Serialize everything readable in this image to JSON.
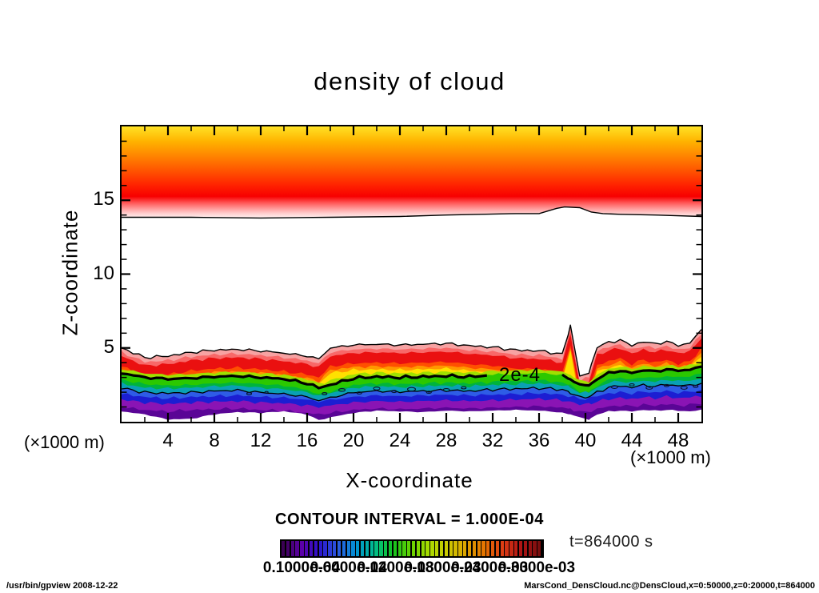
{
  "header": {
    "title": "density of cloud"
  },
  "axes": {
    "x_label": "X-coordinate",
    "y_label": "Z-coordinate",
    "x_unit_left": "(×1000 m)",
    "x_unit_right": "(×1000 m)",
    "x_ticks": [
      4,
      8,
      12,
      16,
      20,
      24,
      28,
      32,
      36,
      40,
      44,
      48
    ],
    "y_ticks": [
      5,
      10,
      15
    ]
  },
  "annotations": {
    "contour_interval": "CONTOUR INTERVAL = 1.000E-04",
    "time_label": "t=864000 s",
    "contour_label": "2e-4"
  },
  "footer": {
    "left": "/usr/bin/gpview  2008-12-22",
    "right": "MarsCond_DensCloud.nc@DensCloud,x=0:50000,z=0:20000,t=864000"
  },
  "colorbar": {
    "labels": [
      "0.1000e-04",
      "0.6000e-04",
      "0.1200e-03",
      "0.1800e-03",
      "0.2400e-03",
      "0.3000e-03"
    ],
    "stops": [
      "#3A0054",
      "#5C00A8",
      "#2A14CC",
      "#2B5BE0",
      "#0093D2",
      "#00BE8C",
      "#14C21E",
      "#66D200",
      "#AADC00",
      "#CCC800",
      "#DCA300",
      "#E67300",
      "#DC3C14",
      "#AE1414",
      "#7A0E0E"
    ],
    "stripes": 56
  },
  "chart_data": {
    "type": "heatmap",
    "subtype": "filled-contour",
    "title": "density of cloud",
    "xlabel": "X-coordinate",
    "ylabel": "Z-coordinate",
    "xlim": [
      0,
      50
    ],
    "ylim": [
      0,
      20
    ],
    "x_unit": "(×1000 m)",
    "y_unit": "(×1000 m)",
    "contour_interval": "1.000E-04",
    "time": "t=864000 s",
    "labeled_contour": {
      "label": "2e-4",
      "x": 32.55,
      "z": 3.2
    },
    "upper_cloud": {
      "description": "upper cloud deck from z=20 down to ~z=14, yellow at top through orange/red to pink-white at bottom contour",
      "boundary": {
        "x": [
          0,
          6,
          12,
          18,
          24,
          28,
          31,
          34,
          36,
          37.5,
          38.2,
          39.5,
          40.5,
          41.5,
          43,
          46,
          50
        ],
        "z": [
          13.85,
          13.85,
          13.8,
          13.85,
          13.9,
          14.0,
          14.05,
          14.1,
          14.1,
          14.45,
          14.55,
          14.5,
          14.2,
          14.1,
          14.05,
          14.0,
          13.9
        ]
      },
      "gradient": [
        [
          0,
          "#FFE226"
        ],
        [
          0.16,
          "#FFB400"
        ],
        [
          0.34,
          "#FF8000"
        ],
        [
          0.52,
          "#FF4A00"
        ],
        [
          0.66,
          "#FF1E00"
        ],
        [
          0.77,
          "#F70000"
        ],
        [
          0.84,
          "#FF5555"
        ],
        [
          0.9,
          "#FF9595"
        ],
        [
          0.955,
          "#FFCCCC"
        ],
        [
          1,
          "#FFECEC"
        ]
      ]
    },
    "lower_cloud": {
      "description": "surface cloud layer ~z=0-5.5 with rainbow stratification; notch near x=39.5-40.3; spike to z~6.5 at x~38.7",
      "x": [
        0,
        2,
        4,
        6,
        8,
        10,
        12,
        14,
        16,
        17,
        18,
        20,
        22,
        24,
        26,
        28,
        30,
        32,
        34,
        36,
        37,
        38,
        38.7,
        39.5,
        40.3,
        41,
        42,
        43,
        44,
        45,
        46,
        47,
        48,
        49,
        50
      ],
      "top": [
        5.0,
        4.35,
        4.45,
        4.7,
        4.85,
        4.9,
        4.8,
        4.65,
        4.45,
        4.25,
        5.0,
        5.2,
        5.25,
        5.2,
        5.25,
        5.3,
        5.15,
        5.05,
        4.85,
        4.8,
        4.7,
        4.55,
        6.5,
        3.1,
        3.3,
        5.1,
        5.35,
        5.55,
        5.15,
        5.45,
        5.25,
        5.45,
        5.15,
        5.35,
        6.2
      ],
      "contour_2e4": [
        3.3,
        3.0,
        2.9,
        2.95,
        3.05,
        3.1,
        3.0,
        2.9,
        2.6,
        2.3,
        2.5,
        2.95,
        3.05,
        3.0,
        3.05,
        3.1,
        3.05,
        3.15,
        3.2,
        3.25,
        3.2,
        3.1,
        2.9,
        2.5,
        2.45,
        2.9,
        3.3,
        3.45,
        3.3,
        3.5,
        3.4,
        3.55,
        3.45,
        3.55,
        3.7
      ],
      "contour_1e4": [
        2.4,
        2.1,
        2.05,
        2.1,
        2.2,
        2.25,
        2.1,
        2.0,
        1.8,
        1.55,
        1.75,
        2.1,
        2.2,
        2.15,
        2.2,
        2.25,
        2.2,
        2.3,
        2.35,
        2.4,
        2.35,
        2.3,
        2.1,
        1.8,
        1.8,
        2.1,
        2.45,
        2.55,
        2.45,
        2.6,
        2.5,
        2.65,
        2.55,
        2.6,
        2.7
      ],
      "purple_top": [
        1.5,
        1.3,
        1.2,
        1.3,
        1.35,
        1.4,
        1.3,
        1.25,
        1.1,
        1.0,
        1.1,
        1.3,
        1.4,
        1.35,
        1.4,
        1.45,
        1.4,
        1.45,
        1.5,
        1.55,
        1.5,
        1.45,
        1.35,
        1.15,
        1.2,
        1.35,
        1.55,
        1.6,
        1.55,
        1.65,
        1.6,
        1.7,
        1.6,
        1.65,
        1.75
      ],
      "bottom": [
        0.7,
        0.5,
        0.15,
        0.2,
        0.5,
        0.65,
        0.6,
        0.7,
        0.5,
        0.1,
        0.3,
        0.6,
        0.75,
        0.7,
        0.65,
        0.75,
        0.7,
        0.75,
        0.8,
        0.75,
        0.7,
        0.6,
        0.5,
        0.3,
        0.15,
        0.5,
        0.7,
        0.75,
        0.7,
        0.8,
        0.75,
        0.8,
        0.75,
        0.7,
        0.8
      ],
      "layers": [
        {
          "color": "#F7A2A2",
          "base": "top",
          "offset": 0
        },
        {
          "color": "#F86868",
          "base": "top",
          "offset": -0.3
        },
        {
          "color": "#EA1010",
          "base": "top",
          "offset": -0.55
        },
        {
          "color": "#FF5000",
          "base": "top",
          "offset": -1.25
        },
        {
          "color": "#FF9800",
          "base": "top",
          "offset": -1.5
        },
        {
          "color": "#FFE000",
          "base": "top",
          "offset": -1.7
        },
        {
          "color": "#A0E000",
          "base": "thick",
          "offset": 0.28
        },
        {
          "color": "#2BC800",
          "base": "thick",
          "offset": 0.05
        },
        {
          "color": "#00B43C",
          "base": "thick",
          "offset": -0.45
        },
        {
          "color": "#0AA0B4",
          "base": "blue",
          "offset": 0.2
        },
        {
          "color": "#2E5CE6",
          "base": "blue",
          "offset": -0.12
        },
        {
          "color": "#1C1ED2",
          "base": "purple",
          "offset": 0.38
        },
        {
          "color": "#8A14B4",
          "base": "purple",
          "offset": 0
        },
        {
          "color": "#5A0596",
          "base": "purple",
          "offset": -0.5
        },
        {
          "color": "#FFFFFF",
          "base": "bottom",
          "offset": 0
        }
      ]
    },
    "speckles": [
      [
        11,
        1.9,
        3
      ],
      [
        12.5,
        2.0,
        2
      ],
      [
        17.5,
        1.9,
        3
      ],
      [
        19,
        2.15,
        4
      ],
      [
        20.5,
        1.95,
        3
      ],
      [
        22,
        2.25,
        4
      ],
      [
        23.5,
        2.05,
        3
      ],
      [
        25,
        2.2,
        5
      ],
      [
        26.5,
        2.0,
        3
      ],
      [
        28,
        2.15,
        4
      ],
      [
        29.5,
        2.3,
        3
      ],
      [
        42.5,
        2.35,
        4
      ],
      [
        44,
        2.5,
        3
      ],
      [
        45.5,
        2.3,
        4
      ],
      [
        47,
        2.45,
        3
      ],
      [
        48.5,
        2.3,
        4
      ],
      [
        49.5,
        2.4,
        3
      ]
    ]
  }
}
